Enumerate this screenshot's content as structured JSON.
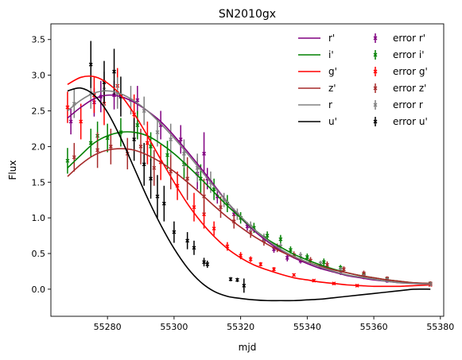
{
  "chart_data": {
    "type": "line",
    "title": "SN2010gx",
    "xlabel": "mjd",
    "ylabel": "Flux",
    "xlim": [
      55263,
      55381
    ],
    "ylim": [
      -0.38,
      3.72
    ],
    "xticks": [
      55280,
      55300,
      55320,
      55340,
      55360,
      55380
    ],
    "yticks": [
      0.0,
      0.5,
      1.0,
      1.5,
      2.0,
      2.5,
      3.0,
      3.5
    ],
    "xtick_labels": [
      "55280",
      "55300",
      "55320",
      "55340",
      "55360",
      "55380"
    ],
    "ytick_labels": [
      "0.0",
      "0.5",
      "1.0",
      "1.5",
      "2.0",
      "2.5",
      "3.0",
      "3.5"
    ],
    "grid": false,
    "legend_placement": "upper-right",
    "legend_columns": 2,
    "fit_series": [
      {
        "name": "r'",
        "color": "#800080",
        "x": [
          55268,
          55272,
          55276,
          55280,
          55284,
          55288,
          55292,
          55296,
          55300,
          55304,
          55308,
          55312,
          55316,
          55320,
          55324,
          55328,
          55332,
          55336,
          55340,
          55344,
          55348,
          55352,
          55356,
          55360,
          55364,
          55368,
          55372,
          55377
        ],
        "y": [
          2.4,
          2.55,
          2.67,
          2.72,
          2.7,
          2.62,
          2.5,
          2.35,
          2.15,
          1.93,
          1.7,
          1.46,
          1.22,
          1.0,
          0.82,
          0.67,
          0.54,
          0.44,
          0.36,
          0.29,
          0.24,
          0.19,
          0.16,
          0.13,
          0.11,
          0.09,
          0.08,
          0.07
        ]
      },
      {
        "name": "i'",
        "color": "#008000",
        "x": [
          55268,
          55272,
          55276,
          55280,
          55284,
          55288,
          55292,
          55296,
          55300,
          55304,
          55308,
          55312,
          55316,
          55320,
          55324,
          55328,
          55332,
          55336,
          55340,
          55344,
          55348,
          55352,
          55356,
          55360,
          55364,
          55368,
          55372,
          55377
        ],
        "y": [
          1.7,
          1.88,
          2.05,
          2.15,
          2.2,
          2.2,
          2.15,
          2.04,
          1.9,
          1.73,
          1.55,
          1.36,
          1.17,
          1.0,
          0.84,
          0.7,
          0.59,
          0.49,
          0.41,
          0.34,
          0.28,
          0.23,
          0.19,
          0.16,
          0.13,
          0.11,
          0.09,
          0.08
        ]
      },
      {
        "name": "g'",
        "color": "#ff0000",
        "x": [
          55268,
          55272,
          55276,
          55280,
          55284,
          55288,
          55292,
          55296,
          55300,
          55304,
          55308,
          55312,
          55316,
          55320,
          55324,
          55328,
          55332,
          55336,
          55340,
          55344,
          55348,
          55352,
          55356,
          55360,
          55364,
          55368,
          55372,
          55377
        ],
        "y": [
          2.87,
          2.97,
          2.98,
          2.89,
          2.72,
          2.46,
          2.15,
          1.82,
          1.5,
          1.2,
          0.95,
          0.74,
          0.57,
          0.44,
          0.34,
          0.27,
          0.21,
          0.16,
          0.13,
          0.1,
          0.08,
          0.06,
          0.05,
          0.04,
          0.04,
          0.04,
          0.05,
          0.06
        ]
      },
      {
        "name": "z'",
        "color": "#a52a2a",
        "x": [
          55268,
          55272,
          55276,
          55280,
          55284,
          55288,
          55292,
          55296,
          55300,
          55304,
          55308,
          55312,
          55316,
          55320,
          55324,
          55328,
          55332,
          55336,
          55340,
          55344,
          55348,
          55352,
          55356,
          55360,
          55364,
          55368,
          55372,
          55377
        ],
        "y": [
          1.58,
          1.75,
          1.88,
          1.95,
          1.97,
          1.95,
          1.88,
          1.78,
          1.65,
          1.5,
          1.34,
          1.17,
          1.01,
          0.87,
          0.74,
          0.63,
          0.53,
          0.45,
          0.38,
          0.32,
          0.27,
          0.23,
          0.19,
          0.16,
          0.13,
          0.11,
          0.09,
          0.08
        ]
      },
      {
        "name": "r",
        "color": "#808080",
        "x": [
          55268,
          55272,
          55276,
          55280,
          55284,
          55288,
          55292,
          55296,
          55300,
          55304,
          55308,
          55312,
          55316,
          55320,
          55324,
          55328,
          55332,
          55336,
          55340,
          55344,
          55348,
          55352,
          55356,
          55360,
          55364,
          55368,
          55372,
          55377
        ],
        "y": [
          2.5,
          2.65,
          2.75,
          2.78,
          2.74,
          2.64,
          2.5,
          2.32,
          2.12,
          1.9,
          1.67,
          1.44,
          1.22,
          1.02,
          0.84,
          0.69,
          0.56,
          0.46,
          0.38,
          0.31,
          0.25,
          0.2,
          0.17,
          0.14,
          0.11,
          0.09,
          0.08,
          0.07
        ]
      },
      {
        "name": "u'",
        "color": "#000000",
        "x": [
          55268,
          55272,
          55276,
          55280,
          55284,
          55288,
          55292,
          55296,
          55300,
          55304,
          55308,
          55312,
          55316,
          55320,
          55324,
          55328,
          55332,
          55336,
          55340,
          55344,
          55348,
          55352,
          55356,
          55360,
          55364,
          55368,
          55372,
          55377
        ],
        "y": [
          2.78,
          2.82,
          2.72,
          2.48,
          2.12,
          1.7,
          1.28,
          0.9,
          0.57,
          0.3,
          0.1,
          -0.03,
          -0.1,
          -0.13,
          -0.15,
          -0.16,
          -0.16,
          -0.16,
          -0.15,
          -0.14,
          -0.12,
          -0.1,
          -0.08,
          -0.06,
          -0.04,
          -0.02,
          0.0,
          0.0
        ]
      }
    ],
    "error_series": [
      {
        "name": "error r'",
        "color": "#800080",
        "points": [
          {
            "x": 55269,
            "y": 2.35,
            "err": 0.18
          },
          {
            "x": 55276,
            "y": 2.62,
            "err": 0.2
          },
          {
            "x": 55278,
            "y": 2.7,
            "err": 0.22
          },
          {
            "x": 55282,
            "y": 2.72,
            "err": 0.2
          },
          {
            "x": 55289,
            "y": 2.65,
            "err": 0.2
          },
          {
            "x": 55296,
            "y": 2.3,
            "err": 0.2
          },
          {
            "x": 55302,
            "y": 2.1,
            "err": 0.2
          },
          {
            "x": 55307,
            "y": 1.62,
            "err": 0.22
          },
          {
            "x": 55309,
            "y": 1.9,
            "err": 0.3
          },
          {
            "x": 55310,
            "y": 1.55,
            "err": 0.15
          },
          {
            "x": 55313,
            "y": 1.3,
            "err": 0.1
          },
          {
            "x": 55318,
            "y": 1.05,
            "err": 0.08
          },
          {
            "x": 55322,
            "y": 0.88,
            "err": 0.06
          },
          {
            "x": 55327,
            "y": 0.7,
            "err": 0.05
          },
          {
            "x": 55330,
            "y": 0.56,
            "err": 0.05
          },
          {
            "x": 55334,
            "y": 0.44,
            "err": 0.05
          },
          {
            "x": 55338,
            "y": 0.4,
            "err": 0.04
          },
          {
            "x": 55344,
            "y": 0.32,
            "err": 0.04
          },
          {
            "x": 55350,
            "y": 0.24,
            "err": 0.04
          },
          {
            "x": 55357,
            "y": 0.17,
            "err": 0.03
          },
          {
            "x": 55364,
            "y": 0.12,
            "err": 0.03
          },
          {
            "x": 55377,
            "y": 0.07,
            "err": 0.03
          }
        ]
      },
      {
        "name": "error i'",
        "color": "#008000",
        "points": [
          {
            "x": 55268,
            "y": 1.8,
            "err": 0.18
          },
          {
            "x": 55275,
            "y": 2.05,
            "err": 0.2
          },
          {
            "x": 55277,
            "y": 2.15,
            "err": 0.2
          },
          {
            "x": 55280,
            "y": 2.12,
            "err": 0.2
          },
          {
            "x": 55284,
            "y": 2.2,
            "err": 0.2
          },
          {
            "x": 55289,
            "y": 2.3,
            "err": 0.2
          },
          {
            "x": 55293,
            "y": 2.0,
            "err": 0.2
          },
          {
            "x": 55298,
            "y": 1.88,
            "err": 0.2
          },
          {
            "x": 55303,
            "y": 1.75,
            "err": 0.2
          },
          {
            "x": 55308,
            "y": 1.55,
            "err": 0.2
          },
          {
            "x": 55312,
            "y": 1.4,
            "err": 0.15
          },
          {
            "x": 55316,
            "y": 1.2,
            "err": 0.12
          },
          {
            "x": 55320,
            "y": 1.0,
            "err": 0.08
          },
          {
            "x": 55324,
            "y": 0.86,
            "err": 0.07
          },
          {
            "x": 55328,
            "y": 0.75,
            "err": 0.06
          },
          {
            "x": 55332,
            "y": 0.7,
            "err": 0.06
          },
          {
            "x": 55335,
            "y": 0.55,
            "err": 0.05
          },
          {
            "x": 55340,
            "y": 0.45,
            "err": 0.05
          },
          {
            "x": 55345,
            "y": 0.38,
            "err": 0.05
          },
          {
            "x": 55350,
            "y": 0.3,
            "err": 0.04
          },
          {
            "x": 55357,
            "y": 0.2,
            "err": 0.04
          },
          {
            "x": 55364,
            "y": 0.14,
            "err": 0.03
          },
          {
            "x": 55377,
            "y": 0.08,
            "err": 0.03
          }
        ]
      },
      {
        "name": "error g'",
        "color": "#ff0000",
        "points": [
          {
            "x": 55268,
            "y": 2.55,
            "err": 0.22
          },
          {
            "x": 55272,
            "y": 2.35,
            "err": 0.25
          },
          {
            "x": 55276,
            "y": 2.72,
            "err": 0.25
          },
          {
            "x": 55279,
            "y": 2.6,
            "err": 0.3
          },
          {
            "x": 55283,
            "y": 2.85,
            "err": 0.25
          },
          {
            "x": 55288,
            "y": 2.45,
            "err": 0.28
          },
          {
            "x": 55292,
            "y": 2.05,
            "err": 0.3
          },
          {
            "x": 55296,
            "y": 1.78,
            "err": 0.25
          },
          {
            "x": 55301,
            "y": 1.45,
            "err": 0.2
          },
          {
            "x": 55306,
            "y": 1.15,
            "err": 0.2
          },
          {
            "x": 55309,
            "y": 1.05,
            "err": 0.2
          },
          {
            "x": 55312,
            "y": 0.85,
            "err": 0.1
          },
          {
            "x": 55316,
            "y": 0.6,
            "err": 0.06
          },
          {
            "x": 55320,
            "y": 0.47,
            "err": 0.05
          },
          {
            "x": 55323,
            "y": 0.42,
            "err": 0.04
          },
          {
            "x": 55326,
            "y": 0.35,
            "err": 0.03
          },
          {
            "x": 55330,
            "y": 0.28,
            "err": 0.03
          },
          {
            "x": 55336,
            "y": 0.2,
            "err": 0.02
          },
          {
            "x": 55342,
            "y": 0.12,
            "err": 0.02
          },
          {
            "x": 55348,
            "y": 0.08,
            "err": 0.02
          },
          {
            "x": 55355,
            "y": 0.05,
            "err": 0.02
          },
          {
            "x": 55377,
            "y": 0.06,
            "err": 0.02
          }
        ]
      },
      {
        "name": "error z'",
        "color": "#a52a2a",
        "points": [
          {
            "x": 55270,
            "y": 1.85,
            "err": 0.2
          },
          {
            "x": 55277,
            "y": 1.95,
            "err": 0.25
          },
          {
            "x": 55281,
            "y": 2.0,
            "err": 0.25
          },
          {
            "x": 55286,
            "y": 1.9,
            "err": 0.22
          },
          {
            "x": 55290,
            "y": 2.0,
            "err": 0.25
          },
          {
            "x": 55294,
            "y": 1.7,
            "err": 0.25
          },
          {
            "x": 55299,
            "y": 1.65,
            "err": 0.25
          },
          {
            "x": 55304,
            "y": 1.55,
            "err": 0.3
          },
          {
            "x": 55309,
            "y": 1.3,
            "err": 0.25
          },
          {
            "x": 55314,
            "y": 1.15,
            "err": 0.15
          },
          {
            "x": 55318,
            "y": 0.95,
            "err": 0.1
          },
          {
            "x": 55323,
            "y": 0.8,
            "err": 0.08
          },
          {
            "x": 55327,
            "y": 0.68,
            "err": 0.07
          },
          {
            "x": 55331,
            "y": 0.58,
            "err": 0.06
          },
          {
            "x": 55336,
            "y": 0.48,
            "err": 0.05
          },
          {
            "x": 55341,
            "y": 0.4,
            "err": 0.05
          },
          {
            "x": 55346,
            "y": 0.34,
            "err": 0.05
          },
          {
            "x": 55351,
            "y": 0.28,
            "err": 0.04
          },
          {
            "x": 55357,
            "y": 0.22,
            "err": 0.04
          },
          {
            "x": 55364,
            "y": 0.15,
            "err": 0.03
          },
          {
            "x": 55377,
            "y": 0.08,
            "err": 0.03
          }
        ]
      },
      {
        "name": "error r",
        "color": "#808080",
        "points": [
          {
            "x": 55270,
            "y": 2.6,
            "err": 0.2
          },
          {
            "x": 55275,
            "y": 2.75,
            "err": 0.22
          },
          {
            "x": 55279,
            "y": 2.8,
            "err": 0.25
          },
          {
            "x": 55283,
            "y": 2.75,
            "err": 0.22
          },
          {
            "x": 55287,
            "y": 2.65,
            "err": 0.2
          },
          {
            "x": 55291,
            "y": 2.5,
            "err": 0.2
          },
          {
            "x": 55295,
            "y": 2.2,
            "err": 0.2
          },
          {
            "x": 55299,
            "y": 2.1,
            "err": 0.22
          },
          {
            "x": 55303,
            "y": 1.9,
            "err": 0.2
          },
          {
            "x": 55307,
            "y": 1.7,
            "err": 0.2
          },
          {
            "x": 55311,
            "y": 1.5,
            "err": 0.15
          },
          {
            "x": 55315,
            "y": 1.25,
            "err": 0.1
          },
          {
            "x": 55319,
            "y": 1.05,
            "err": 0.08
          },
          {
            "x": 55323,
            "y": 0.88,
            "err": 0.07
          },
          {
            "x": 55327,
            "y": 0.72,
            "err": 0.06
          },
          {
            "x": 55332,
            "y": 0.6,
            "err": 0.05
          },
          {
            "x": 55338,
            "y": 0.47,
            "err": 0.05
          },
          {
            "x": 55344,
            "y": 0.36,
            "err": 0.04
          },
          {
            "x": 55350,
            "y": 0.27,
            "err": 0.04
          },
          {
            "x": 55357,
            "y": 0.18,
            "err": 0.03
          },
          {
            "x": 55364,
            "y": 0.13,
            "err": 0.03
          },
          {
            "x": 55377,
            "y": 0.07,
            "err": 0.03
          }
        ]
      },
      {
        "name": "error u'",
        "color": "#000000",
        "points": [
          {
            "x": 55275,
            "y": 3.15,
            "err": 0.33
          },
          {
            "x": 55279,
            "y": 2.9,
            "err": 0.3
          },
          {
            "x": 55282,
            "y": 3.05,
            "err": 0.32
          },
          {
            "x": 55284,
            "y": 2.7,
            "err": 0.28
          },
          {
            "x": 55288,
            "y": 2.1,
            "err": 0.3
          },
          {
            "x": 55291,
            "y": 1.75,
            "err": 0.3
          },
          {
            "x": 55293,
            "y": 1.55,
            "err": 0.28
          },
          {
            "x": 55295,
            "y": 1.3,
            "err": 0.3
          },
          {
            "x": 55297,
            "y": 1.2,
            "err": 0.25
          },
          {
            "x": 55300,
            "y": 0.8,
            "err": 0.15
          },
          {
            "x": 55304,
            "y": 0.68,
            "err": 0.12
          },
          {
            "x": 55306,
            "y": 0.58,
            "err": 0.1
          },
          {
            "x": 55309,
            "y": 0.38,
            "err": 0.06
          },
          {
            "x": 55310,
            "y": 0.35,
            "err": 0.05
          },
          {
            "x": 55317,
            "y": 0.14,
            "err": 0.03
          },
          {
            "x": 55319,
            "y": 0.13,
            "err": 0.03
          },
          {
            "x": 55321,
            "y": 0.05,
            "err": 0.1
          }
        ]
      }
    ]
  }
}
